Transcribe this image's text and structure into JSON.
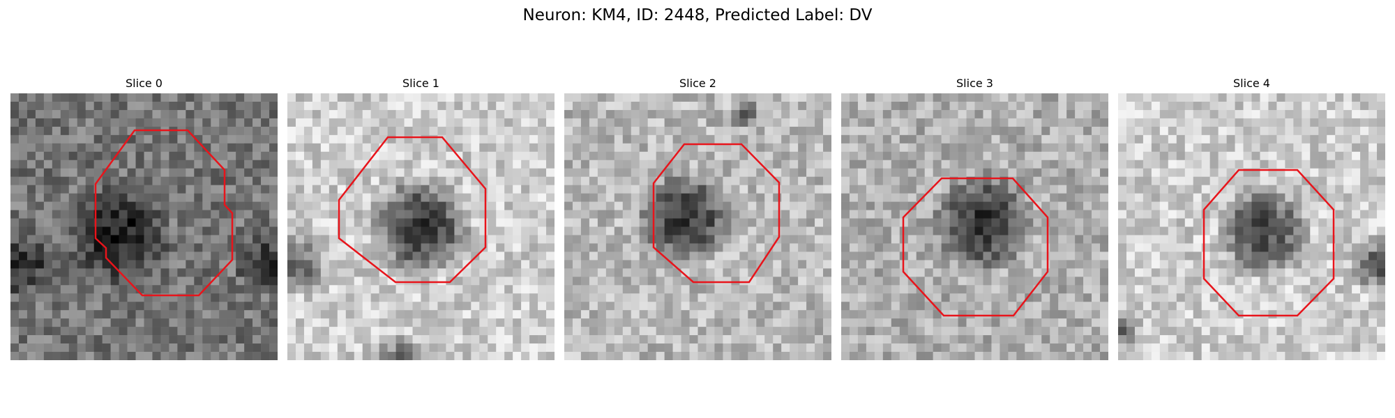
{
  "figure": {
    "title": "Neuron: KM4, ID: 2448, Predicted Label: DV"
  },
  "panels": [
    {
      "label": "Slice 0",
      "contour_color": "#e8141b"
    },
    {
      "label": "Slice 1",
      "contour_color": "#e8141b"
    },
    {
      "label": "Slice 2",
      "contour_color": "#e8141b"
    },
    {
      "label": "Slice 3",
      "contour_color": "#e8141b"
    },
    {
      "label": "Slice 4",
      "contour_color": "#e8141b"
    }
  ],
  "colormap": "gray"
}
